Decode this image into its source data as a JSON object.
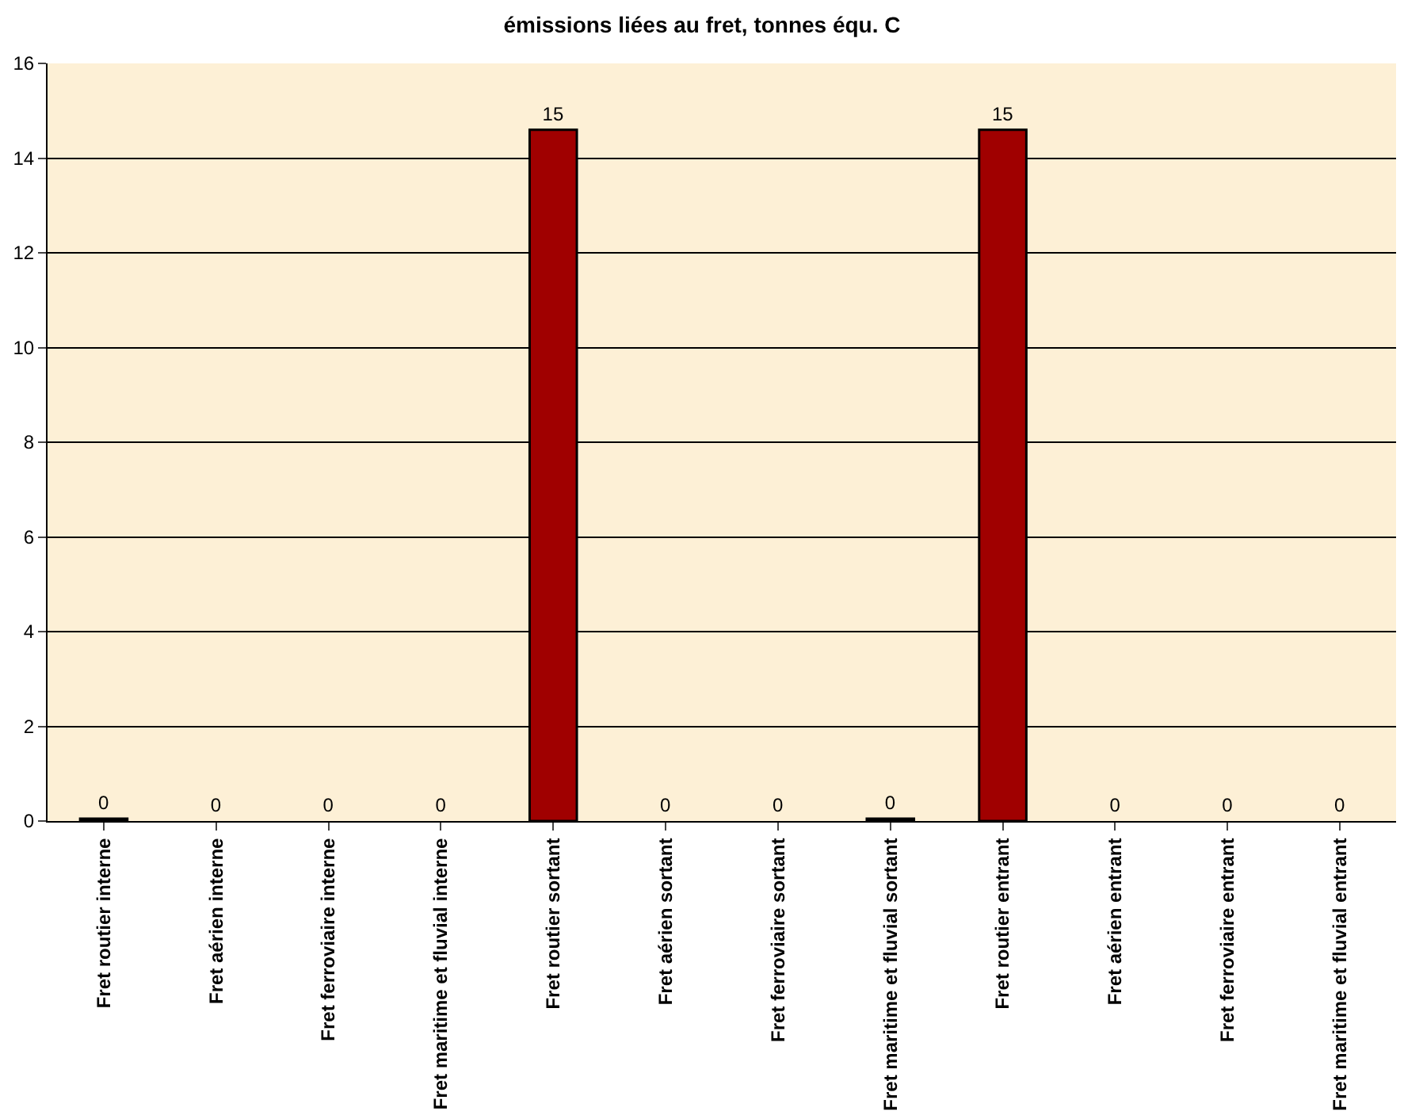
{
  "chart_data": {
    "type": "bar",
    "title": "émissions liées au fret, tonnes équ. C",
    "categories": [
      "Fret routier interne",
      "Fret aérien interne",
      "Fret ferroviaire interne",
      "Fret maritime et fluvial interne",
      "Fret routier sortant",
      "Fret aérien sortant",
      "Fret ferroviaire sortant",
      "Fret maritime et fluvial sortant",
      "Fret routier entrant",
      "Fret aérien entrant",
      "Fret ferroviaire entrant",
      "Fret maritime et fluvial entrant"
    ],
    "values": [
      0.05,
      0,
      0,
      0,
      14.6,
      0,
      0,
      0.05,
      14.6,
      0,
      0,
      0
    ],
    "value_labels": [
      "0",
      "0",
      "0",
      "0",
      "15",
      "0",
      "0",
      "0",
      "15",
      "0",
      "0",
      "0"
    ],
    "color": "#a00000",
    "ylim": [
      0,
      16
    ],
    "yticks": [
      0,
      2,
      4,
      6,
      8,
      10,
      12,
      14,
      16
    ],
    "grid": "y",
    "legend": false
  }
}
